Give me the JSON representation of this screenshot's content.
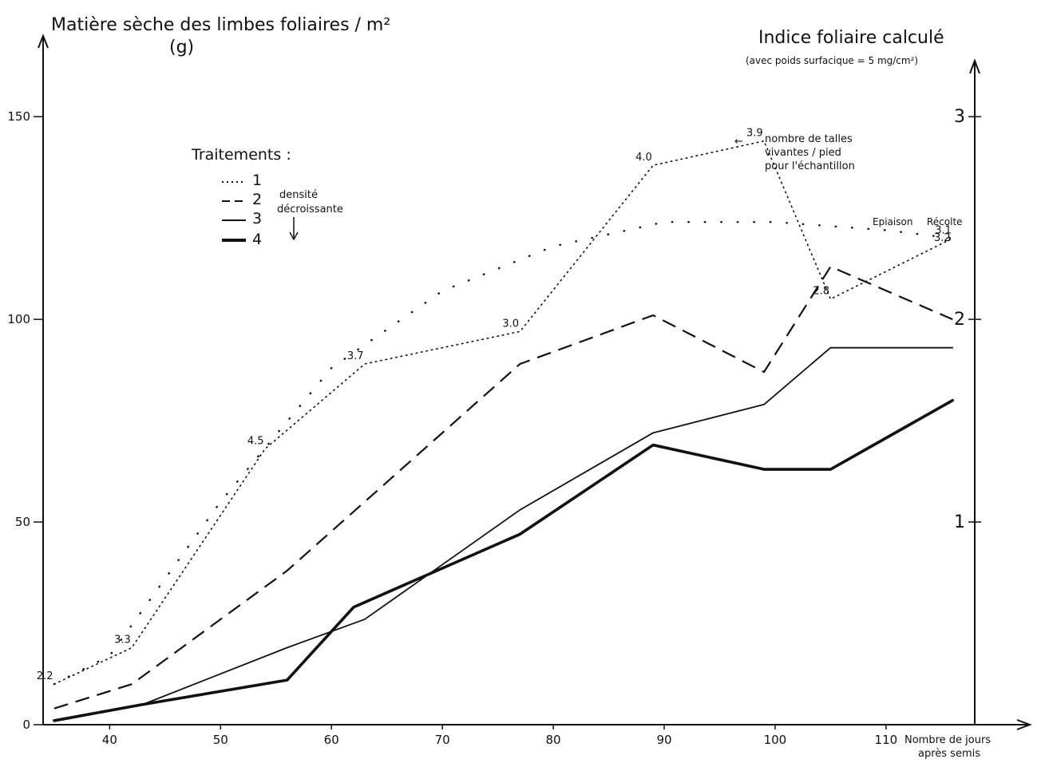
{
  "chart_data": {
    "type": "line",
    "title": "",
    "ylabel": "Matière sèche des limbes foliaires / m²",
    "ylabel_unit": "(g)",
    "y2label": "Indice foliaire calculé",
    "y2label_note": "(avec poids surfacique = 5 mg/cm²)",
    "xlabel": "Nombre de jours",
    "xlabel_2": "après semis",
    "xlim": [
      34,
      118
    ],
    "ylim": [
      0,
      165
    ],
    "y2lim": [
      0,
      3.3
    ],
    "x_ticks": [
      40,
      50,
      60,
      70,
      80,
      90,
      100,
      110
    ],
    "x_tick_labels": [
      "40",
      "50",
      "60",
      "70",
      "80",
      "90",
      "100",
      "110"
    ],
    "y_ticks": [
      0,
      50,
      100,
      150
    ],
    "y_tick_labels": [
      "0",
      "50",
      "100",
      "150"
    ],
    "y2_ticks": [
      1,
      2,
      3
    ],
    "y2_tick_labels": [
      "1",
      "2",
      "3"
    ],
    "legend": {
      "title": "Traitements :",
      "entries": [
        "1",
        "2",
        "3",
        "4"
      ],
      "note_line1": "densité",
      "note_line2": "décroissante",
      "position": "top-left"
    },
    "series": [
      {
        "name": "1",
        "style": "dotted",
        "x": [
          35,
          42,
          54,
          63,
          77,
          89,
          99,
          105,
          116
        ],
        "y": [
          10,
          19,
          68,
          89,
          97,
          138,
          144,
          105,
          120
        ]
      },
      {
        "name": "2",
        "style": "dashed",
        "x": [
          35,
          42,
          56,
          77,
          89,
          99,
          105,
          116
        ],
        "y": [
          4,
          10,
          38,
          89,
          101,
          87,
          113,
          100
        ]
      },
      {
        "name": "3",
        "style": "solid-thin",
        "x": [
          35,
          43,
          56,
          63,
          77,
          89,
          99,
          105,
          116
        ],
        "y": [
          1,
          5,
          19,
          26,
          53,
          72,
          79,
          93,
          93
        ]
      },
      {
        "name": "4",
        "style": "solid-thick",
        "x": [
          35,
          43,
          56,
          62,
          77,
          89,
          99,
          105,
          116
        ],
        "y": [
          1,
          5,
          11,
          29,
          47,
          69,
          63,
          63,
          80
        ]
      }
    ],
    "extra_curve": {
      "style": "sparse-dotted",
      "x": [
        35,
        40,
        50,
        60,
        70,
        80,
        90,
        100,
        110,
        116
      ],
      "y": [
        10,
        17,
        55,
        88,
        107,
        118,
        124,
        124,
        122,
        120
      ]
    },
    "point_labels": [
      {
        "x": 35,
        "y": 10,
        "text": "2.2"
      },
      {
        "x": 42,
        "y": 19,
        "text": "3.3"
      },
      {
        "x": 54,
        "y": 68,
        "text": "4.5"
      },
      {
        "x": 63,
        "y": 89,
        "text": "3.7"
      },
      {
        "x": 77,
        "y": 97,
        "text": "3.0"
      },
      {
        "x": 89,
        "y": 138,
        "text": "4.0"
      },
      {
        "x": 99,
        "y": 144,
        "text": "3.9"
      },
      {
        "x": 105,
        "y": 105,
        "text": "2.8"
      },
      {
        "x": 116,
        "y": 120,
        "text": "3.1"
      }
    ],
    "annotations": {
      "tillers_arrow": "←",
      "tillers_line1": "nombre de talles",
      "tillers_line2": "vivantes / pied",
      "tillers_line3": "pour l'échantillon",
      "epiaison": "Epiaison",
      "recolte": "Récolte",
      "recolte_value": "3.2"
    }
  }
}
